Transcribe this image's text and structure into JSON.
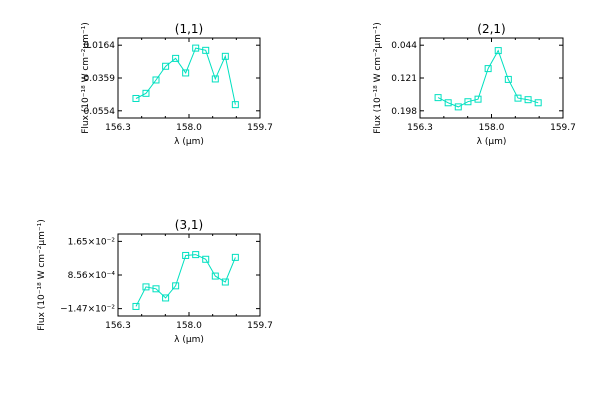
{
  "chart_data": [
    {
      "type": "line",
      "title": "(1,1)",
      "xlabel": "λ (μm)",
      "ylabel": "Flux (10⁻¹⁸ W cm⁻²μm⁻¹)",
      "xlim": [
        156.3,
        159.7
      ],
      "ylim": [
        0.0118,
        0.0585
      ],
      "x_ticks": [
        "156.3",
        "158.0",
        "159.7"
      ],
      "y_ticks": [
        "0.0164",
        "0.0359",
        "0.0554"
      ],
      "color": "#00e0c0",
      "marker": "square",
      "x": [
        156.73,
        156.97,
        157.21,
        157.44,
        157.68,
        157.92,
        158.16,
        158.4,
        158.63,
        158.87,
        159.11
      ],
      "y": [
        0.0232,
        0.0262,
        0.034,
        0.042,
        0.0466,
        0.0381,
        0.0526,
        0.0513,
        0.0346,
        0.0478,
        0.0196
      ]
    },
    {
      "type": "line",
      "title": "(2,1)",
      "xlabel": "λ (μm)",
      "ylabel": "Flux (10⁻¹⁸ W cm⁻²μm⁻¹)",
      "xlim": [
        156.3,
        159.7
      ],
      "ylim": [
        0.0398,
        0.211
      ],
      "x_ticks": [
        "156.3",
        "158.0",
        "159.7"
      ],
      "y_ticks": [
        "0.044",
        "0.121",
        "0.198"
      ],
      "color": "#00e0c0",
      "marker": "square",
      "x": [
        156.73,
        156.97,
        157.21,
        157.44,
        157.68,
        157.92,
        158.16,
        158.4,
        158.63,
        158.87,
        159.11
      ],
      "y": [
        0.0834,
        0.0724,
        0.0636,
        0.0746,
        0.0801,
        0.1455,
        0.184,
        0.1224,
        0.0823,
        0.079,
        0.0724
      ]
    },
    {
      "type": "line",
      "title": "(3,1)",
      "xlabel": "λ (μm)",
      "ylabel": "Flux (10⁻¹⁸ W cm⁻²μm⁻¹)",
      "xlim": [
        156.3,
        159.7
      ],
      "ylim": [
        -0.0177,
        0.0209
      ],
      "x_ticks": [
        "156.3",
        "158.0",
        "159.7"
      ],
      "y_ticks": [
        "1.65×10⁻²",
        "8.56×10⁻⁴",
        "−1.47×10⁻²"
      ],
      "color": "#00e0c0",
      "marker": "square",
      "x": [
        156.73,
        156.97,
        157.21,
        157.44,
        157.68,
        157.92,
        158.16,
        158.4,
        158.63,
        158.87,
        159.11
      ],
      "y": [
        -0.0132,
        -0.004,
        -0.0049,
        -0.0092,
        -0.0035,
        0.0108,
        0.0112,
        0.009,
        0.0011,
        -0.0017,
        0.0099
      ]
    }
  ]
}
